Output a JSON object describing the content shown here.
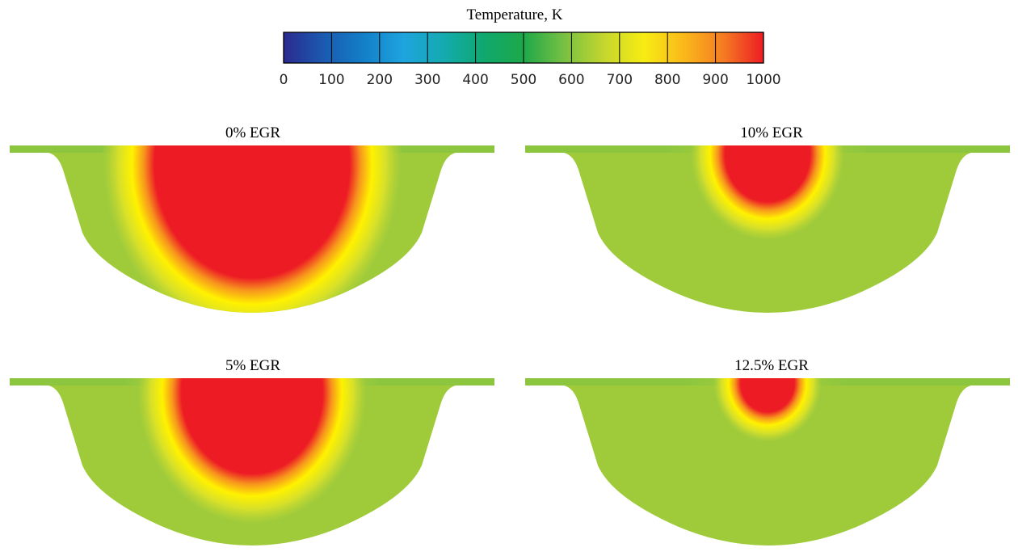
{
  "colorbar": {
    "title": "Temperature, K",
    "ticks": [
      "0",
      "100",
      "200",
      "300",
      "400",
      "500",
      "600",
      "700",
      "800",
      "900",
      "1000"
    ],
    "min": 0,
    "max": 1000,
    "colors": [
      "#2b2a8f",
      "#1b5ab0",
      "#137fc8",
      "#1ea4de",
      "#14aab0",
      "#0fa86e",
      "#1ea84a",
      "#76c043",
      "#c4d62e",
      "#f7ec13",
      "#fbb91a",
      "#f47b22",
      "#ed1c24"
    ]
  },
  "panels": [
    {
      "title": "0% EGR",
      "hot_core_scale": 1.0
    },
    {
      "title": "10% EGR",
      "hot_core_scale": 0.5
    },
    {
      "title": "5% EGR",
      "hot_core_scale": 0.78
    },
    {
      "title": "12.5% EGR",
      "hot_core_scale": 0.3
    }
  ],
  "field_colors": {
    "ambient": "#9fcb3b",
    "top_band": "#8cc63f",
    "ring_yellow": "#fff200",
    "ring_orange": "#f7941d",
    "core_red": "#ed1c24"
  }
}
